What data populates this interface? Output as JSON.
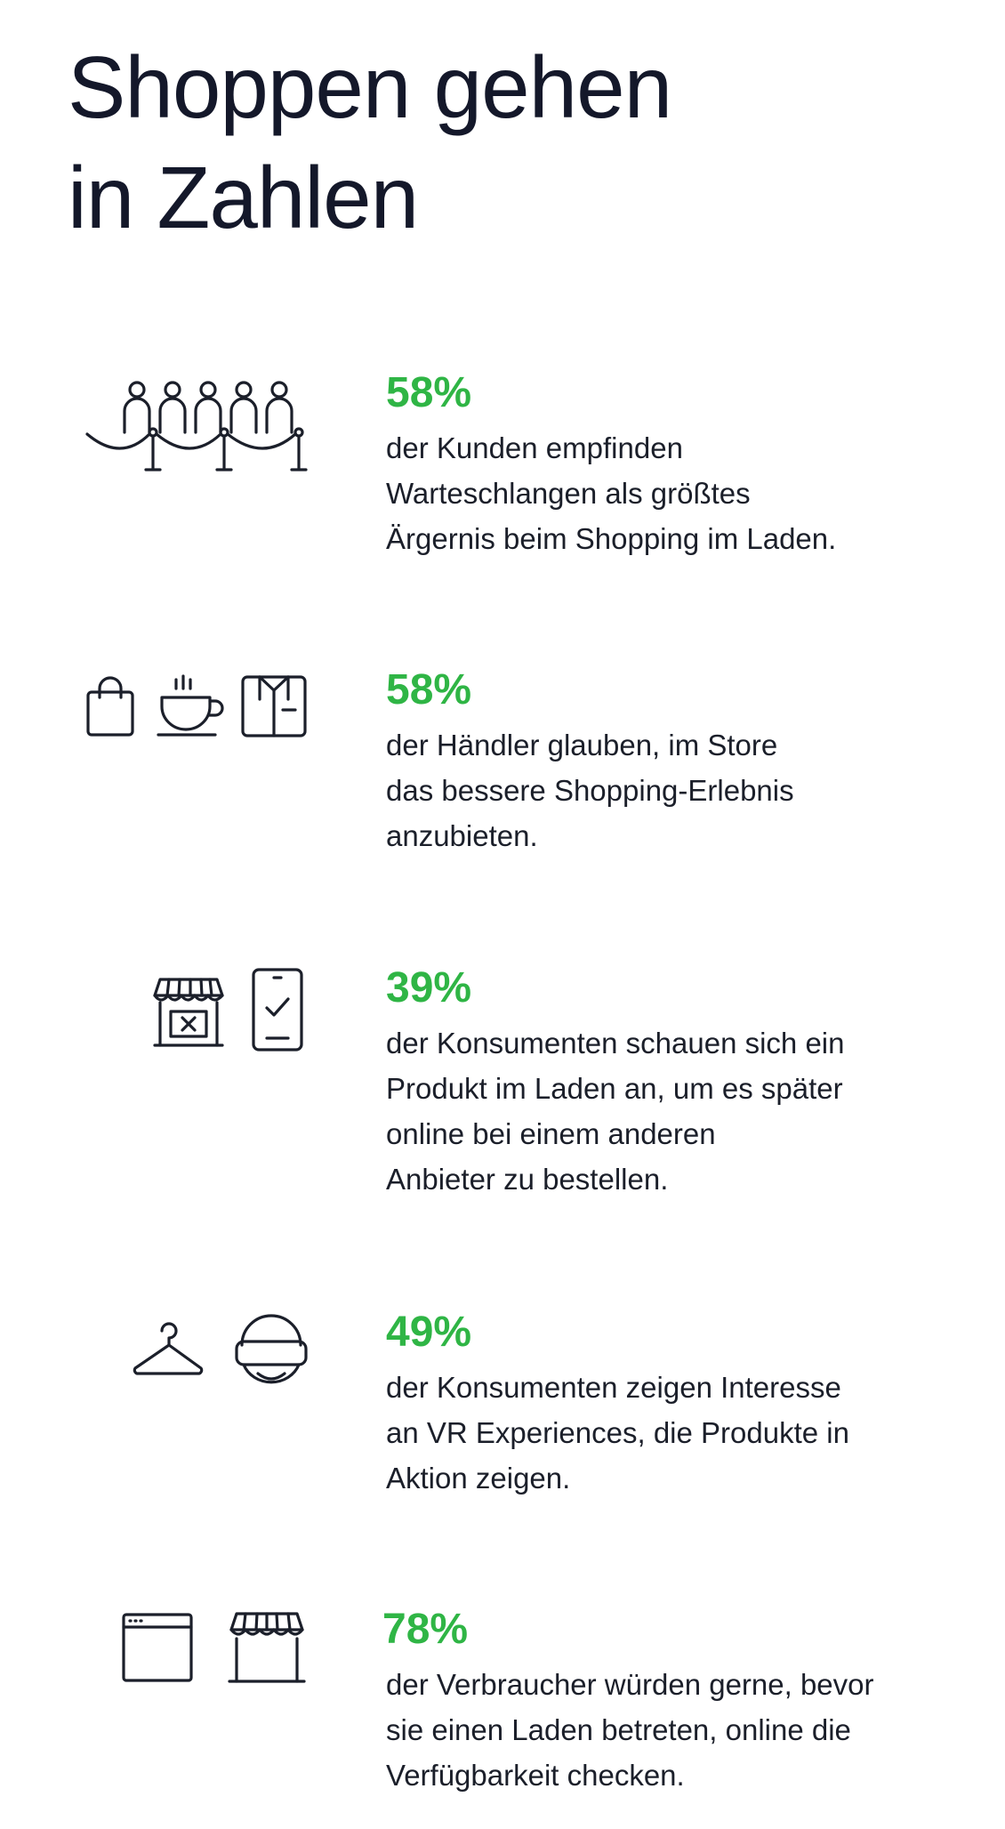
{
  "title": {
    "line1": "Shoppen gehen",
    "line2": "in Zahlen"
  },
  "accent_color": "#2fb545",
  "stats": [
    {
      "value": "58%",
      "lines": [
        "der Kunden empfinden",
        "Warteschlangen als größtes",
        "Ärgernis beim Shopping im Laden."
      ],
      "icons": [
        "queue-barrier-icon"
      ]
    },
    {
      "value": "58%",
      "lines": [
        "der Händler glauben, im Store",
        "das bessere Shopping-Erlebnis",
        "anzubieten."
      ],
      "icons": [
        "shopping-bag-icon",
        "coffee-cup-icon",
        "shirt-box-icon"
      ]
    },
    {
      "value": "39%",
      "lines": [
        "der Konsumenten schauen sich ein",
        "Produkt im Laden an, um es später",
        "online bei einem anderen",
        "Anbieter zu bestellen."
      ],
      "icons": [
        "store-closed-icon",
        "smartphone-check-icon"
      ]
    },
    {
      "value": "49%",
      "lines": [
        "der Konsumenten zeigen Interesse",
        "an VR Experiences, die Produkte in",
        "Aktion zeigen."
      ],
      "icons": [
        "clothes-hanger-icon",
        "vr-headset-icon"
      ]
    },
    {
      "value": "78%",
      "lines": [
        "der Verbraucher würden gerne, bevor",
        "sie einen Laden betreten, online die",
        "Verfügbarkeit checken."
      ],
      "icons": [
        "browser-window-icon",
        "storefront-icon"
      ]
    }
  ]
}
